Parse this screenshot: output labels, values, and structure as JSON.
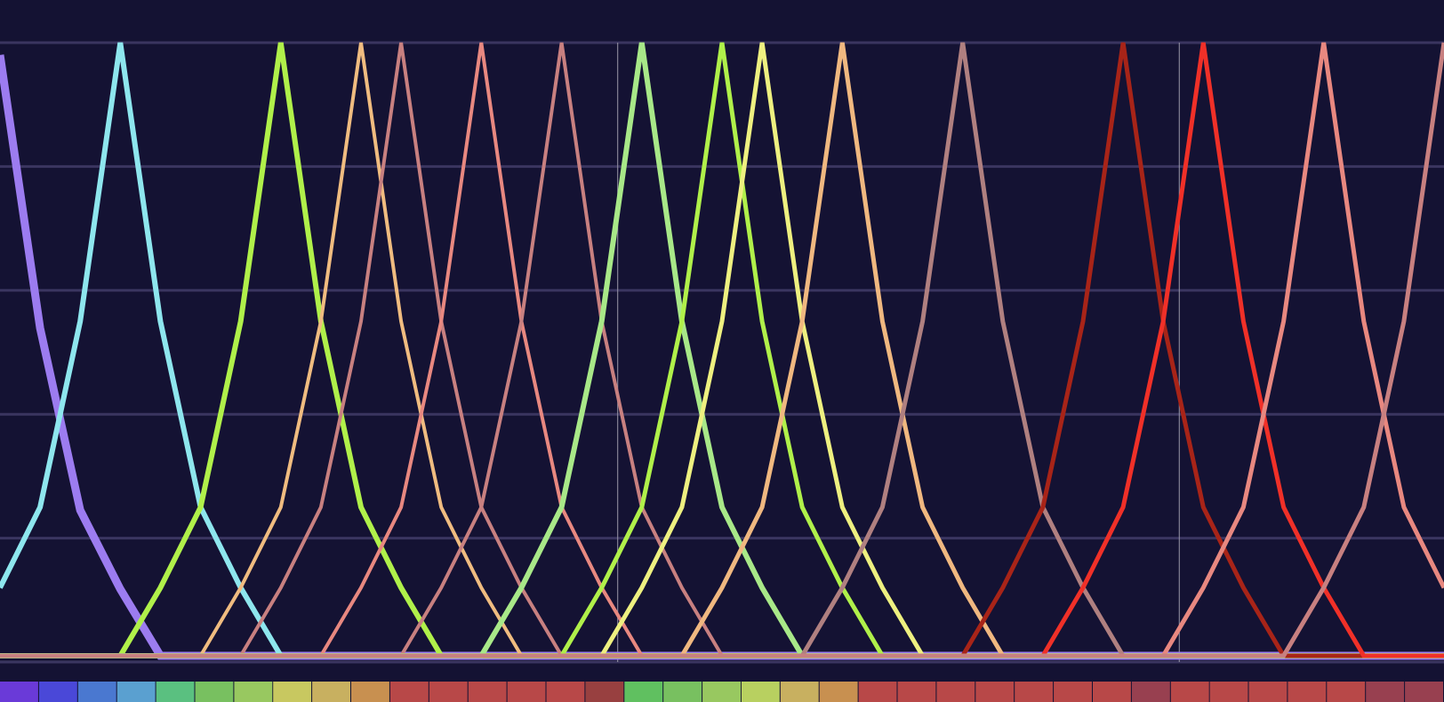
{
  "chart_data": {
    "type": "line",
    "background": "#141233",
    "gridline_color": "#3a3560",
    "marker_color": "#9a98a8",
    "grid": true,
    "x_count": 37,
    "ylim": [
      0,
      100
    ],
    "y_gridlines": [
      0,
      20,
      40,
      60,
      80,
      100
    ],
    "vertical_markers": [
      15.4,
      29.4
    ],
    "series_shape": "single-peak",
    "series": [
      {
        "color": "#9c7cf0",
        "width": 9,
        "peak_x": 0,
        "peak_y": 98,
        "tail": 1
      },
      {
        "color": "#8ee6ee",
        "width": 6,
        "peak_x": 3,
        "peak_y": 100,
        "tail": 1
      },
      {
        "color": "#b0f04a",
        "width": 6,
        "peak_x": 7,
        "peak_y": 100,
        "tail": 1
      },
      {
        "color": "#f0bc80",
        "width": 4,
        "peak_x": 9,
        "peak_y": 100,
        "tail": 1
      },
      {
        "color": "#c88080",
        "width": 4,
        "peak_x": 10,
        "peak_y": 100,
        "tail": 1
      },
      {
        "color": "#e88880",
        "width": 4,
        "peak_x": 12,
        "peak_y": 100,
        "tail": 1
      },
      {
        "color": "#c88080",
        "width": 4,
        "peak_x": 14,
        "peak_y": 100,
        "tail": 1
      },
      {
        "color": "#a8e888",
        "width": 6,
        "peak_x": 16,
        "peak_y": 100,
        "tail": 1
      },
      {
        "color": "#b0f04a",
        "width": 5,
        "peak_x": 18,
        "peak_y": 100,
        "tail": 1
      },
      {
        "color": "#eef080",
        "width": 5,
        "peak_x": 19,
        "peak_y": 100,
        "tail": 1
      },
      {
        "color": "#f0b880",
        "width": 5,
        "peak_x": 21,
        "peak_y": 100,
        "tail": 1
      },
      {
        "color": "#b08080",
        "width": 5,
        "peak_x": 24,
        "peak_y": 100,
        "tail": 1
      },
      {
        "color": "#a82418",
        "width": 5,
        "peak_x": 28,
        "peak_y": 100,
        "tail": 1
      },
      {
        "color": "#f03028",
        "width": 5,
        "peak_x": 30,
        "peak_y": 100,
        "tail": 1
      },
      {
        "color": "#e88880",
        "width": 5,
        "peak_x": 33,
        "peak_y": 100,
        "tail": 1
      },
      {
        "color": "#c88080",
        "width": 5,
        "peak_x": 36,
        "peak_y": 100,
        "tail": 1
      }
    ],
    "band_colors": [
      "#6a3ad8",
      "#4a48d8",
      "#4a78d0",
      "#5aa0d0",
      "#5ac080",
      "#78c060",
      "#98c860",
      "#c8c860",
      "#c8b060",
      "#c89050",
      "#b84848",
      "#b84848",
      "#b84848",
      "#b84848",
      "#b84848",
      "#984040",
      "#60c060",
      "#78c060",
      "#98c860",
      "#b8d060",
      "#c8b060",
      "#c89050",
      "#b84848",
      "#b84848",
      "#b84848",
      "#b84848",
      "#b84848",
      "#b84848",
      "#b84848",
      "#984050",
      "#b84848",
      "#b84848",
      "#b84848",
      "#b84848",
      "#b84848",
      "#984050",
      "#984050"
    ]
  }
}
